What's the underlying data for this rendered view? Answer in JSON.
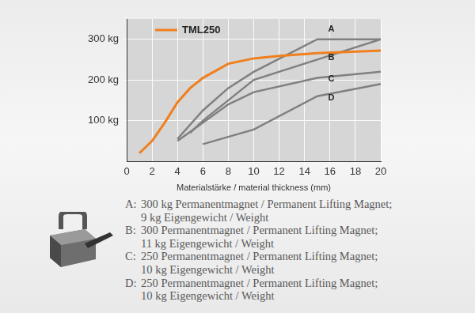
{
  "chart_data": {
    "type": "line",
    "x_label": "Materialstärke / material thickness (mm)",
    "xlim": [
      0,
      20
    ],
    "xticks": [
      0,
      2,
      4,
      6,
      8,
      10,
      12,
      14,
      16,
      18,
      20
    ],
    "ylim": [
      0,
      350
    ],
    "yticks": [
      {
        "value": 100,
        "label": "100 kg"
      },
      {
        "value": 200,
        "label": "200 kg"
      },
      {
        "value": 300,
        "label": "300 kg"
      }
    ],
    "grid": true,
    "legend": "upper left",
    "series": [
      {
        "name": "TML250",
        "color": "#f07f1e",
        "x": [
          1,
          2,
          3,
          4,
          5,
          6,
          8,
          10,
          12,
          15,
          20
        ],
        "values": [
          20,
          50,
          95,
          145,
          180,
          205,
          240,
          253,
          259,
          266,
          272
        ]
      },
      {
        "color": "#808080",
        "x": [
          4,
          6,
          8,
          10,
          15,
          20
        ],
        "values": [
          55,
          125,
          180,
          220,
          300,
          300
        ]
      },
      {
        "color": "#808080",
        "x": [
          5,
          6,
          8,
          10,
          15,
          20
        ],
        "values": [
          70,
          100,
          150,
          200,
          250,
          300
        ]
      },
      {
        "color": "#808080",
        "x": [
          4,
          6,
          8,
          10,
          15,
          20
        ],
        "values": [
          50,
          95,
          140,
          170,
          205,
          220
        ]
      },
      {
        "color": "#808080",
        "x": [
          6,
          8,
          10,
          15,
          20
        ],
        "values": [
          42,
          60,
          78,
          160,
          190
        ]
      }
    ],
    "annotations": [
      {
        "text": "A",
        "x": 16.1,
        "y": 324
      },
      {
        "text": "B",
        "x": 16.1,
        "y": 254
      },
      {
        "text": "C",
        "x": 16.1,
        "y": 202
      },
      {
        "text": "D",
        "x": 16.1,
        "y": 155
      }
    ],
    "notes": [
      {
        "label": "A:",
        "lines": [
          "300 kg Permanentmagnet / Permanent Lifting Magnet;",
          "9 kg Eigengewicht / Weight"
        ]
      },
      {
        "label": "B:",
        "lines": [
          "300 Permanentmagnet / Permanent Lifting Magnet;",
          "11 kg Eigengewicht / Weight"
        ]
      },
      {
        "label": "C:",
        "lines": [
          "250 Permanentmagnet / Permanent Lifting Magnet;",
          "10 kg Eigengewicht / Weight"
        ]
      },
      {
        "label": "D:",
        "lines": [
          "250 Permanentmagnet / Permanent Lifting Magnet;",
          "10 kg Eigengewicht / Weight"
        ]
      }
    ]
  }
}
